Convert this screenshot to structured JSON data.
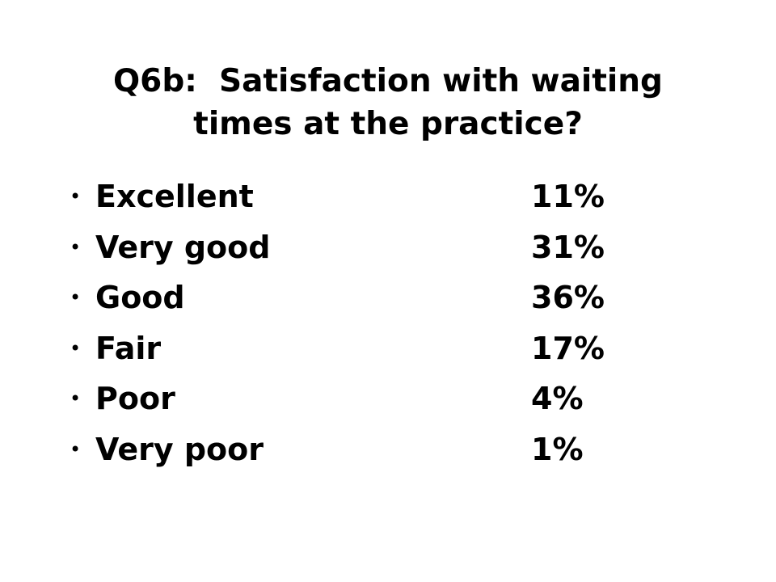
{
  "title": {
    "lines": [
      "Q6b:  Satisfaction with waiting",
      "times at the practice?"
    ]
  },
  "items": [
    {
      "label": "Excellent",
      "value": "11%"
    },
    {
      "label": "Very good",
      "value": "31%"
    },
    {
      "label": "Good",
      "value": "36%"
    },
    {
      "label": "Fair",
      "value": "17%"
    },
    {
      "label": "Poor",
      "value": "4%"
    },
    {
      "label": "Very poor",
      "value": "1%"
    }
  ]
}
